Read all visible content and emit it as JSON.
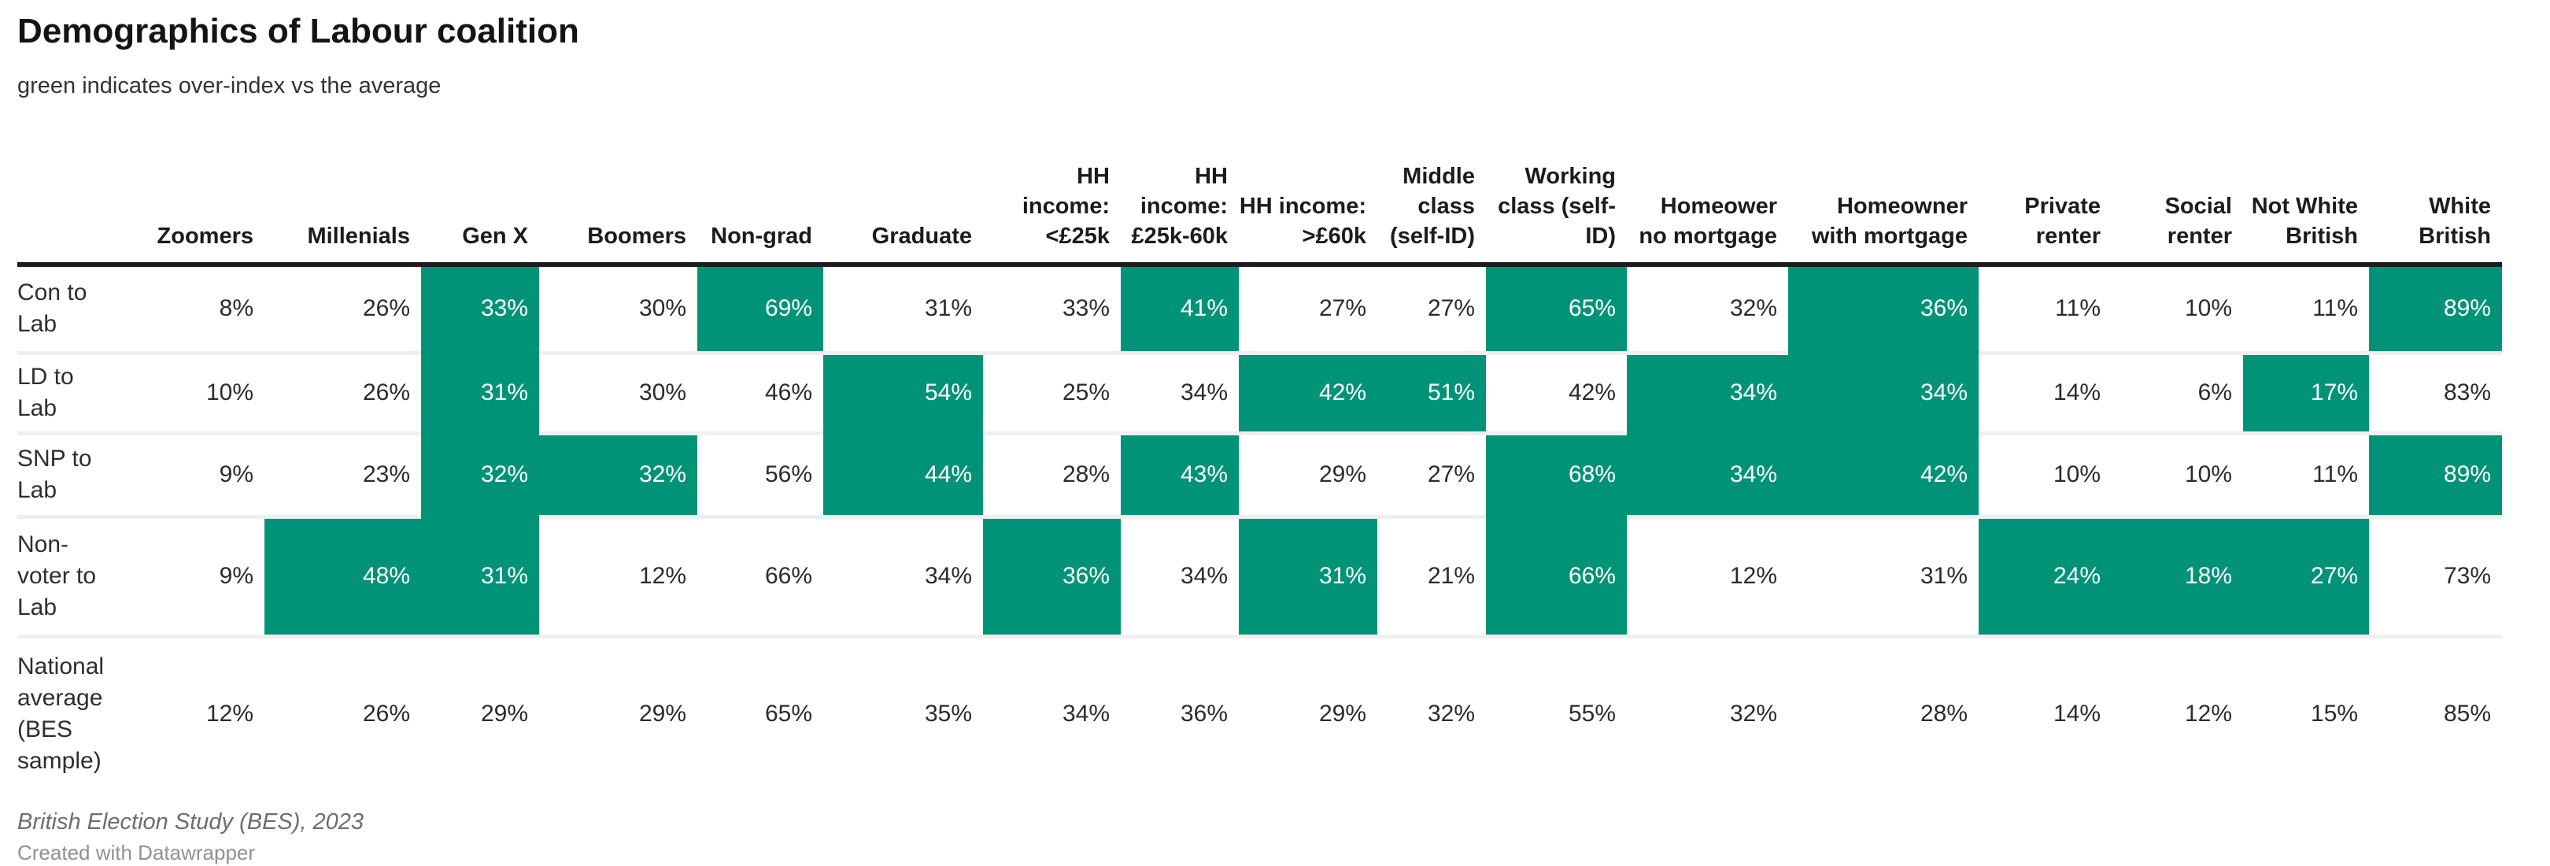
{
  "header": {
    "title": "Demographics of Labour coalition",
    "subtitle": "green indicates over-index vs the average"
  },
  "chart_data": {
    "type": "heatmap",
    "highlight_color": "#009377",
    "highlight_meaning": "green cell = group over-indexes vs the national average",
    "unit": "%",
    "columns": [
      "Zoomers",
      "Millenials",
      "Gen X",
      "Boomers",
      "Non-grad",
      "Graduate",
      "HH income: <£25k",
      "HH income: £25k-60k",
      "HH income: >£60k",
      "Middle class (self-ID)",
      "Working class (self-ID)",
      "Homeower no mortgage",
      "Homeowner with mortgage",
      "Private renter",
      "Social renter",
      "Not White British",
      "White British"
    ],
    "rows": [
      {
        "label": "Con to Lab",
        "values": [
          "8%",
          "26%",
          "33%",
          "30%",
          "69%",
          "31%",
          "33%",
          "41%",
          "27%",
          "27%",
          "65%",
          "32%",
          "36%",
          "11%",
          "10%",
          "11%",
          "89%"
        ],
        "highlight": [
          0,
          0,
          1,
          0,
          1,
          0,
          0,
          1,
          0,
          0,
          1,
          0,
          1,
          0,
          0,
          0,
          1
        ]
      },
      {
        "label": "LD to Lab",
        "values": [
          "10%",
          "26%",
          "31%",
          "30%",
          "46%",
          "54%",
          "25%",
          "34%",
          "42%",
          "51%",
          "42%",
          "34%",
          "34%",
          "14%",
          "6%",
          "17%",
          "83%"
        ],
        "highlight": [
          0,
          0,
          1,
          0,
          0,
          1,
          0,
          0,
          1,
          1,
          0,
          1,
          1,
          0,
          0,
          1,
          0
        ]
      },
      {
        "label": "SNP to Lab",
        "values": [
          "9%",
          "23%",
          "32%",
          "32%",
          "56%",
          "44%",
          "28%",
          "43%",
          "29%",
          "27%",
          "68%",
          "34%",
          "42%",
          "10%",
          "10%",
          "11%",
          "89%"
        ],
        "highlight": [
          0,
          0,
          1,
          1,
          0,
          1,
          0,
          1,
          0,
          0,
          1,
          1,
          1,
          0,
          0,
          0,
          1
        ]
      },
      {
        "label": "Non-voter to Lab",
        "values": [
          "9%",
          "48%",
          "31%",
          "12%",
          "66%",
          "34%",
          "36%",
          "34%",
          "31%",
          "21%",
          "66%",
          "12%",
          "31%",
          "24%",
          "18%",
          "27%",
          "73%"
        ],
        "highlight": [
          0,
          1,
          1,
          0,
          0,
          0,
          1,
          0,
          1,
          0,
          1,
          0,
          0,
          1,
          1,
          1,
          0
        ]
      },
      {
        "label": "National average (BES sample)",
        "values": [
          "12%",
          "26%",
          "29%",
          "29%",
          "65%",
          "35%",
          "34%",
          "36%",
          "29%",
          "32%",
          "55%",
          "32%",
          "28%",
          "14%",
          "12%",
          "15%",
          "85%"
        ],
        "highlight": [
          0,
          0,
          0,
          0,
          0,
          0,
          0,
          0,
          0,
          0,
          0,
          0,
          0,
          0,
          0,
          0,
          0
        ]
      }
    ]
  },
  "footer": {
    "source": "British Election Study (BES), 2023",
    "attribution": "Created with Datawrapper"
  }
}
